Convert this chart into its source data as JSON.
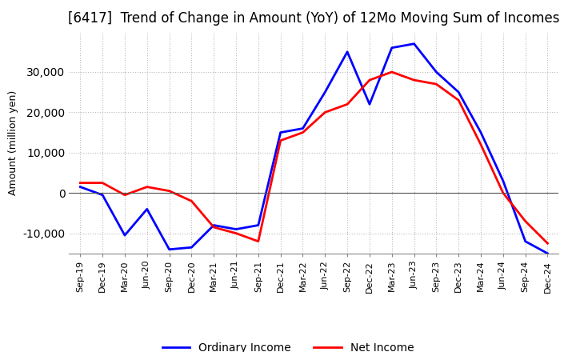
{
  "title": "[6417]  Trend of Change in Amount (YoY) of 12Mo Moving Sum of Incomes",
  "ylabel": "Amount (million yen)",
  "x_labels": [
    "Sep-19",
    "Dec-19",
    "Mar-20",
    "Jun-20",
    "Sep-20",
    "Dec-20",
    "Mar-21",
    "Jun-21",
    "Sep-21",
    "Dec-21",
    "Mar-22",
    "Jun-22",
    "Sep-22",
    "Dec-22",
    "Mar-23",
    "Jun-23",
    "Sep-23",
    "Dec-23",
    "Mar-24",
    "Jun-24",
    "Sep-24",
    "Dec-24"
  ],
  "ordinary_income": [
    1500,
    -500,
    -10500,
    -4000,
    -14000,
    -13500,
    -8000,
    -9000,
    -8000,
    15000,
    16000,
    25000,
    35000,
    22000,
    36000,
    37000,
    30000,
    25000,
    15000,
    3000,
    -12000,
    -15000
  ],
  "net_income": [
    2500,
    2500,
    -500,
    1500,
    500,
    -2000,
    -8500,
    -10000,
    -12000,
    13000,
    15000,
    20000,
    22000,
    28000,
    30000,
    28000,
    27000,
    23000,
    12000,
    0,
    -7000,
    -12500
  ],
  "ordinary_color": "#0000ff",
  "net_color": "#ff0000",
  "ylim": [
    -15000,
    40000
  ],
  "yticks": [
    -10000,
    0,
    10000,
    20000,
    30000
  ],
  "grid_color": "#bbbbbb",
  "background_color": "#ffffff",
  "title_fontsize": 12,
  "axis_fontsize": 9,
  "tick_fontsize": 8,
  "legend_fontsize": 10
}
